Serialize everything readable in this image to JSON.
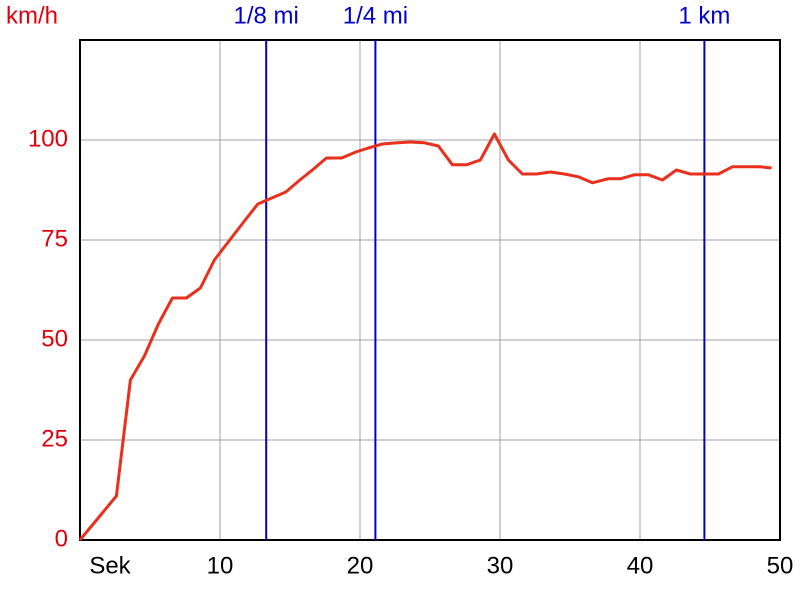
{
  "chart_data": {
    "type": "line",
    "y_label": "km/h",
    "x_label": "Sek",
    "x": [
      0,
      2.6,
      3.6,
      4.6,
      5.6,
      6.6,
      7.6,
      8.6,
      9.6,
      10.7,
      11.8,
      12.7,
      13.7,
      14.7,
      15.7,
      16.6,
      17.6,
      18.7,
      19.7,
      20.6,
      21.6,
      22.7,
      23.6,
      24.6,
      25.6,
      26.6,
      27.6,
      28.6,
      29.6,
      30.6,
      31.6,
      32.6,
      33.6,
      34.6,
      35.6,
      36.6,
      37.7,
      38.6,
      39.6,
      40.6,
      41.6,
      42.6,
      43.6,
      44.6,
      45.6,
      46.6,
      47.6,
      48.6,
      49.4
    ],
    "values": [
      0,
      11,
      40,
      46,
      54,
      60.5,
      60.5,
      63,
      70,
      75,
      80,
      84,
      85.5,
      87,
      90,
      92.5,
      95.5,
      95.5,
      97,
      98,
      99,
      99.3,
      99.5,
      99.3,
      98.5,
      93.8,
      93.8,
      95,
      101.5,
      95,
      91.5,
      91.5,
      92,
      91.5,
      90.8,
      89.3,
      90.3,
      90.3,
      91.3,
      91.3,
      90,
      92.5,
      91.5,
      91.5,
      91.5,
      93.3,
      93.3,
      93.3,
      93
    ],
    "color": "#e8301c",
    "markers": [
      {
        "label": "1/8 mi",
        "x": 13.3
      },
      {
        "label": "1/4 mi",
        "x": 21.1
      },
      {
        "label": "1 km",
        "x": 44.6
      }
    ],
    "marker_color": "#0000c8",
    "xlim": [
      0,
      50
    ],
    "xticks": [
      10,
      20,
      30,
      40,
      50
    ],
    "ylim": [
      0,
      125
    ],
    "yticks": [
      0,
      25,
      50,
      75,
      100
    ],
    "grid": true
  }
}
